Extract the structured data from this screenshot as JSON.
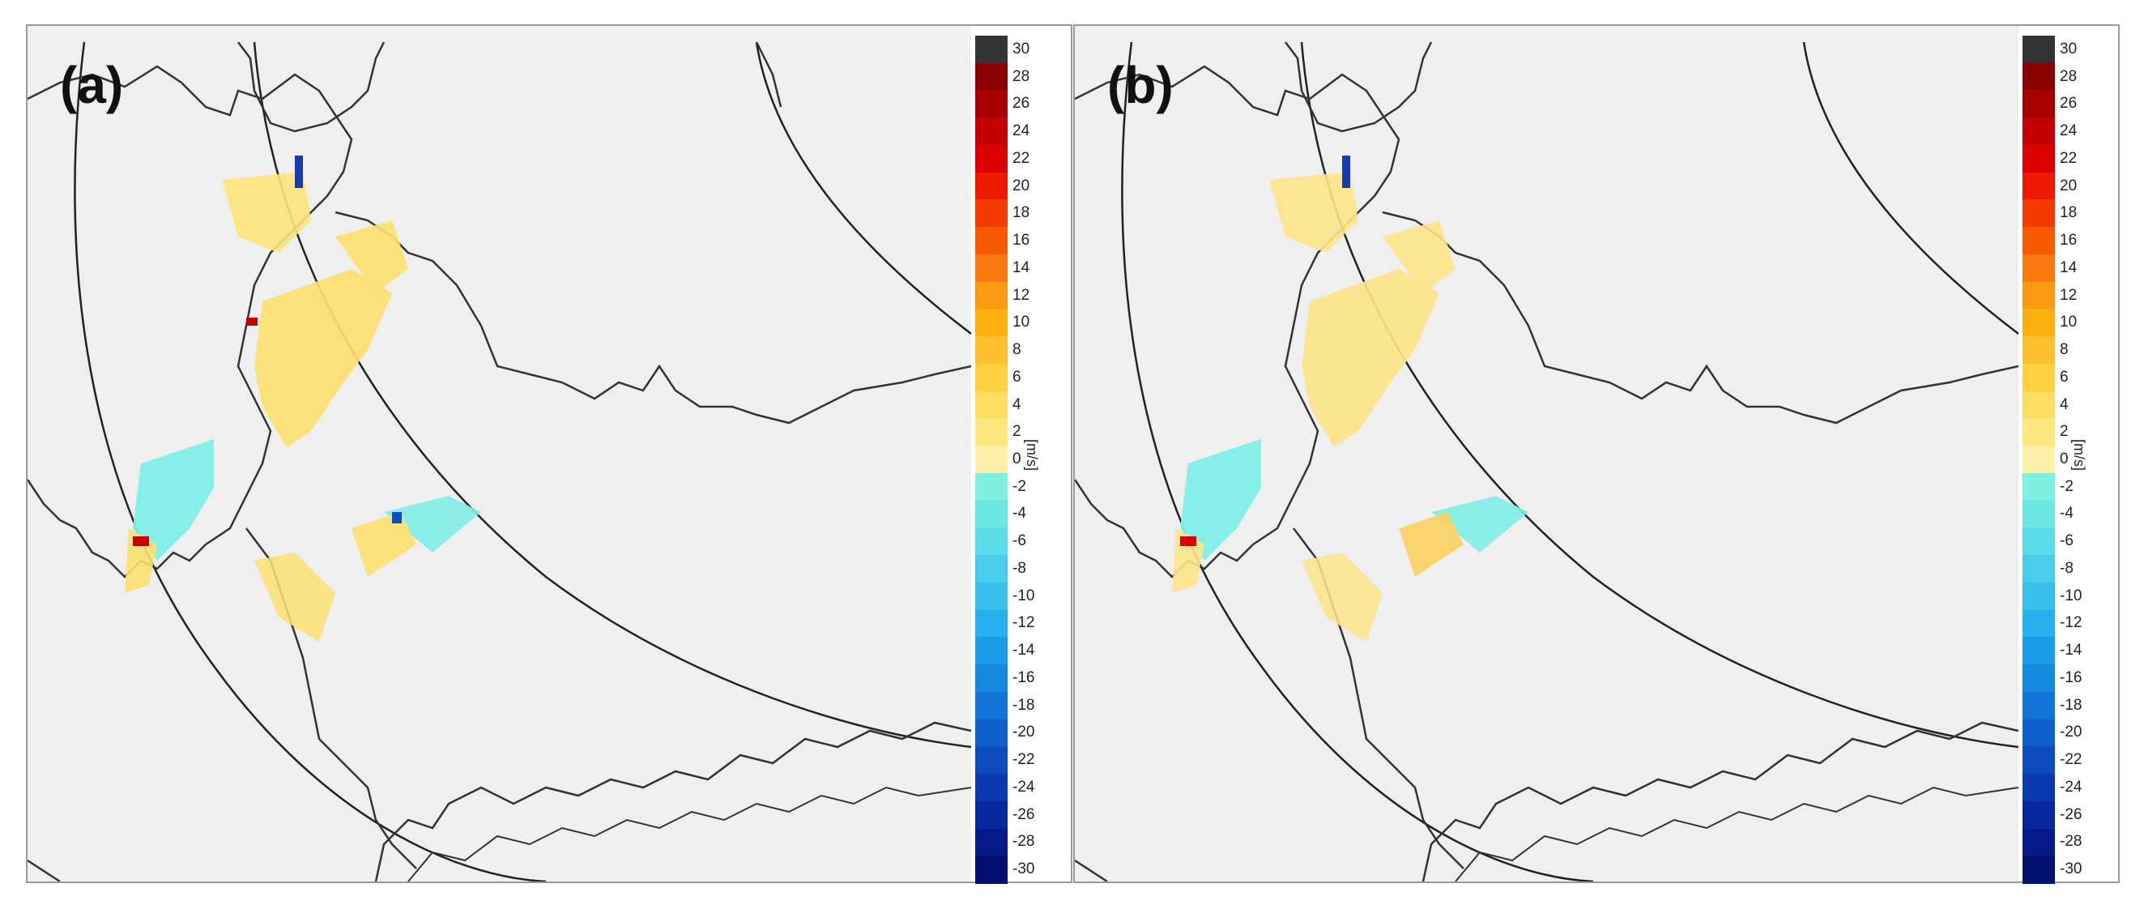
{
  "panels": [
    {
      "id": "a",
      "label": "(a)"
    },
    {
      "id": "b",
      "label": "(b)"
    }
  ],
  "colorbar": {
    "unit": "[m/s]",
    "ticks": [
      "30",
      "28",
      "26",
      "24",
      "22",
      "20",
      "18",
      "16",
      "14",
      "12",
      "10",
      "8",
      "6",
      "4",
      "2",
      "0",
      "-2",
      "-4",
      "-6",
      "-8",
      "-10",
      "-12",
      "-14",
      "-16",
      "-18",
      "-20",
      "-22",
      "-24",
      "-26",
      "-28",
      "-30"
    ],
    "colors": [
      "#333333",
      "#8b0000",
      "#a80000",
      "#c40000",
      "#dd0000",
      "#ee1a00",
      "#f53a00",
      "#f85a00",
      "#fb7a10",
      "#fb9a10",
      "#fbb010",
      "#fcc030",
      "#fcd040",
      "#fdde60",
      "#fde880",
      "#fef0a8",
      "#7fefe0",
      "#6de7e4",
      "#5cdbe8",
      "#4acdea",
      "#38bfec",
      "#26afee",
      "#1a9ce8",
      "#1588e0",
      "#1274d6",
      "#0f60cc",
      "#0c4cbf",
      "#0a3ab0",
      "#08289f",
      "#061a8a",
      "#041070"
    ]
  }
}
